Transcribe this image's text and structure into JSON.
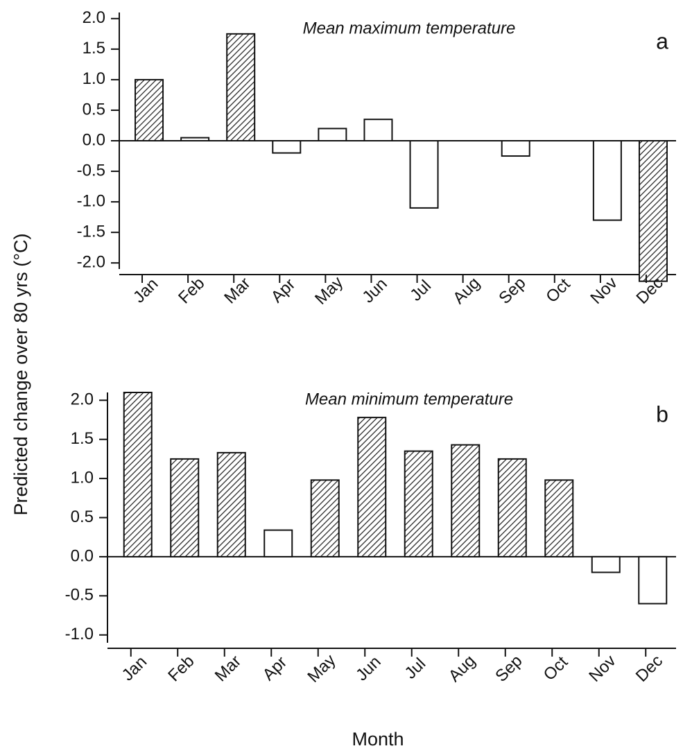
{
  "chart_data": [
    {
      "type": "bar",
      "title": "Mean maximum temperature",
      "panel": "a",
      "ylabel": "Predicted change over 80 yrs (°C)",
      "categories": [
        "Jan",
        "Feb",
        "Mar",
        "Apr",
        "May",
        "Jun",
        "Jul",
        "Aug",
        "Sep",
        "Oct",
        "Nov",
        "Dec"
      ],
      "values": [
        1.0,
        0.05,
        1.75,
        -0.2,
        0.2,
        0.35,
        -1.1,
        0.0,
        -0.25,
        0.0,
        -1.3,
        -2.3
      ],
      "hatched": [
        true,
        false,
        true,
        false,
        false,
        false,
        false,
        false,
        false,
        false,
        false,
        true
      ],
      "ylim": [
        -2.1,
        2.1
      ],
      "yticks": [
        {
          "value": 2,
          "label": "2.0"
        },
        1.5,
        {
          "value": 1,
          "label": "1.0"
        },
        0.5,
        {
          "value": 0,
          "label": "0.0"
        },
        -0.5,
        {
          "value": -1,
          "label": "-1.0"
        },
        -1.5,
        {
          "value": -2,
          "label": "-2.0"
        }
      ]
    },
    {
      "type": "bar",
      "title": "Mean minimum temperature",
      "panel": "b",
      "xlabel": "Month",
      "categories": [
        "Jan",
        "Feb",
        "Mar",
        "Apr",
        "May",
        "Jun",
        "Jul",
        "Aug",
        "Sep",
        "Oct",
        "Nov",
        "Dec"
      ],
      "values": [
        2.1,
        1.25,
        1.33,
        0.34,
        0.98,
        1.78,
        1.35,
        1.43,
        1.25,
        0.98,
        -0.2,
        -0.6
      ],
      "hatched": [
        true,
        true,
        true,
        false,
        true,
        true,
        true,
        true,
        true,
        true,
        false,
        false
      ],
      "ylim": [
        -1.1,
        2.1
      ],
      "yticks": [
        {
          "value": 2,
          "label": "2.0"
        },
        1.5,
        {
          "value": 1,
          "label": "1.0"
        },
        0.5,
        {
          "value": 0,
          "label": "0.0"
        },
        -0.5,
        {
          "value": -1,
          "label": "-1.0"
        }
      ]
    }
  ]
}
